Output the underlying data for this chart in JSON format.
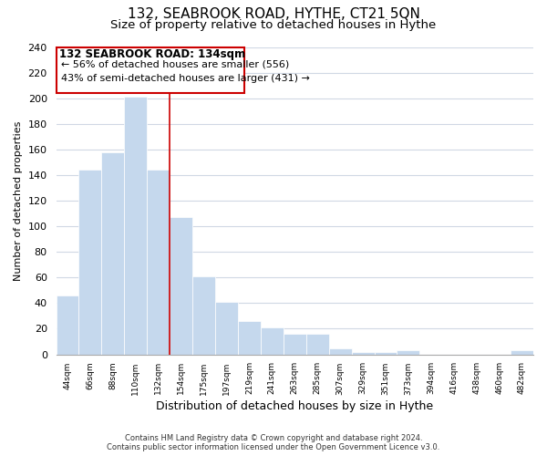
{
  "title": "132, SEABROOK ROAD, HYTHE, CT21 5QN",
  "subtitle": "Size of property relative to detached houses in Hythe",
  "xlabel": "Distribution of detached houses by size in Hythe",
  "ylabel": "Number of detached properties",
  "footer_line1": "Contains HM Land Registry data © Crown copyright and database right 2024.",
  "footer_line2": "Contains public sector information licensed under the Open Government Licence v3.0.",
  "annotation_title": "132 SEABROOK ROAD: 134sqm",
  "annotation_line2": "← 56% of detached houses are smaller (556)",
  "annotation_line3": "43% of semi-detached houses are larger (431) →",
  "bar_labels": [
    "44sqm",
    "66sqm",
    "88sqm",
    "110sqm",
    "132sqm",
    "154sqm",
    "175sqm",
    "197sqm",
    "219sqm",
    "241sqm",
    "263sqm",
    "285sqm",
    "307sqm",
    "329sqm",
    "351sqm",
    "373sqm",
    "394sqm",
    "416sqm",
    "438sqm",
    "460sqm",
    "482sqm"
  ],
  "bar_values": [
    46,
    144,
    158,
    201,
    144,
    107,
    61,
    41,
    26,
    21,
    16,
    16,
    5,
    2,
    2,
    3,
    0,
    0,
    0,
    0,
    3
  ],
  "bar_color": "#c5d8ed",
  "bar_edgecolor": "#c5d8ed",
  "vline_color": "#cc0000",
  "vline_index": 4,
  "ylim": [
    0,
    240
  ],
  "yticks": [
    0,
    20,
    40,
    60,
    80,
    100,
    120,
    140,
    160,
    180,
    200,
    220,
    240
  ],
  "background_color": "#ffffff",
  "grid_color": "#d0d8e4",
  "box_edge_color": "#cc0000",
  "title_fontsize": 11,
  "subtitle_fontsize": 9.5,
  "ylabel_fontsize": 8,
  "xlabel_fontsize": 9,
  "ytick_fontsize": 8,
  "xtick_fontsize": 6.5,
  "annotation_title_fontsize": 8.5,
  "annotation_text_fontsize": 8
}
